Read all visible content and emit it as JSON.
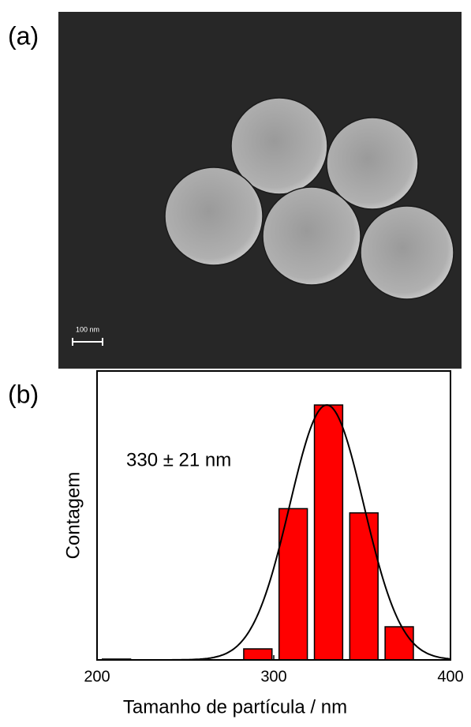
{
  "panel_labels": [
    "(a)",
    "(b)"
  ],
  "image": {
    "scale_bar_label": "100 nm"
  },
  "chart_data": {
    "type": "bar",
    "x": [
      211,
      291,
      311,
      331,
      351,
      371
    ],
    "values": [
      1,
      13,
      178,
      300,
      173,
      39
    ],
    "color": "#ff0000",
    "xlim": [
      200,
      400
    ],
    "xticks": [
      200,
      300,
      400
    ],
    "ylim": [
      0,
      340
    ],
    "xlabel": "Tamanho de partícula / nm",
    "ylabel": "Contagem",
    "annotation": "330 ± 21 nm",
    "fit": {
      "mean": 330,
      "sd": 21,
      "amplitude": 300
    }
  }
}
